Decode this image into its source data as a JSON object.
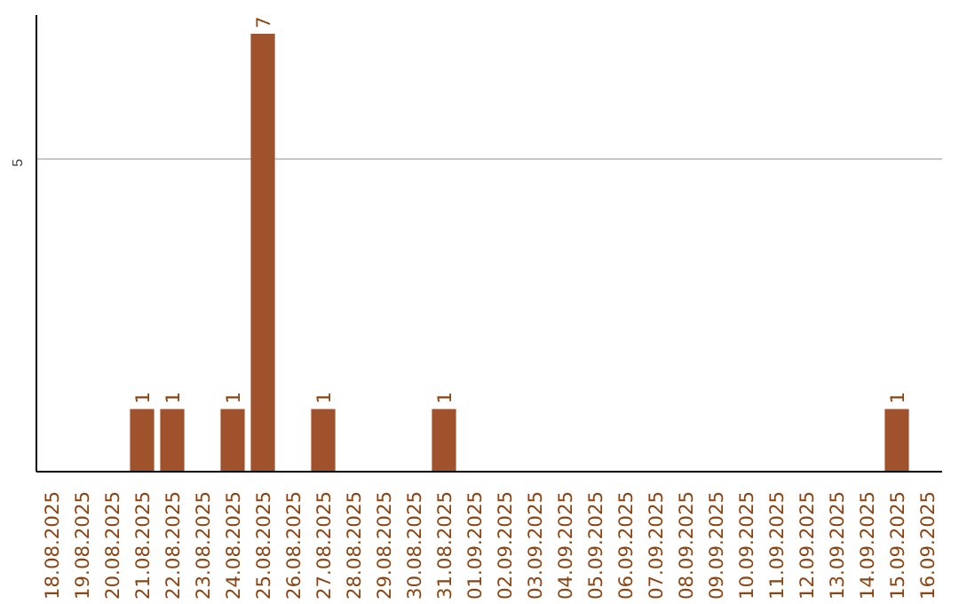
{
  "chart_data": {
    "type": "bar",
    "categories": [
      "18.08.2025",
      "19.08.2025",
      "20.08.2025",
      "21.08.2025",
      "22.08.2025",
      "23.08.2025",
      "24.08.2025",
      "25.08.2025",
      "26.08.2025",
      "27.08.2025",
      "28.08.2025",
      "29.08.2025",
      "30.08.2025",
      "31.08.2025",
      "01.09.2025",
      "02.09.2025",
      "03.09.2025",
      "04.09.2025",
      "05.09.2025",
      "06.09.2025",
      "07.09.2025",
      "08.09.2025",
      "09.09.2025",
      "10.09.2025",
      "11.09.2025",
      "12.09.2025",
      "13.09.2025",
      "14.09.2025",
      "15.09.2025",
      "16.09.2025"
    ],
    "values": [
      0,
      0,
      0,
      1,
      1,
      0,
      1,
      7,
      0,
      1,
      0,
      0,
      0,
      1,
      0,
      0,
      0,
      0,
      0,
      0,
      0,
      0,
      0,
      0,
      0,
      0,
      0,
      0,
      1,
      0
    ],
    "value_labels": [
      null,
      null,
      null,
      "1",
      "1",
      null,
      "1",
      "7",
      null,
      "1",
      null,
      null,
      null,
      "1",
      null,
      null,
      null,
      null,
      null,
      null,
      null,
      null,
      null,
      null,
      null,
      null,
      null,
      null,
      "1",
      null
    ],
    "color": "#a0522d",
    "ylim": [
      0,
      7.3
    ],
    "yticks": [
      5
    ],
    "grid": "y"
  }
}
